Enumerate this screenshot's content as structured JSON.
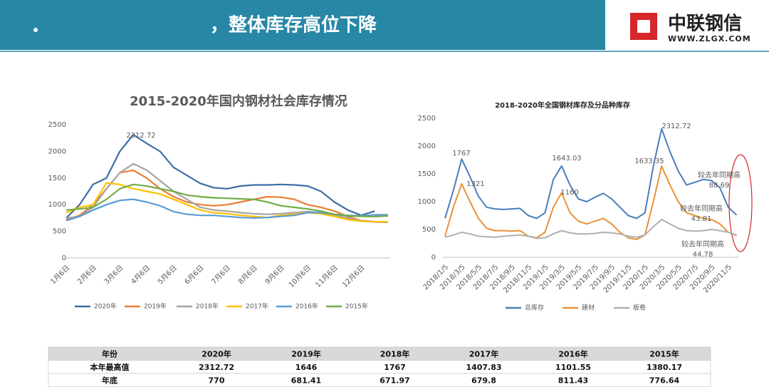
{
  "header": {
    "title": "，整体库存高位下降",
    "logo": "中联钢信",
    "url": "WWW.ZLGX.COM"
  },
  "chart_data": [
    {
      "type": "line",
      "title": "2015-2020年国内钢材社会库存情况",
      "categories": [
        "1月6日",
        null,
        "2月6日",
        null,
        "3月6日",
        null,
        "4月6日",
        null,
        "5月6日",
        null,
        "6月6日",
        null,
        "7月6日",
        null,
        "8月6日",
        null,
        "9月6日",
        null,
        "10月6日",
        null,
        "11月6日",
        null,
        "12月6日",
        null,
        null
      ],
      "series": [
        {
          "name": "2020年",
          "color": "#3e6ea6",
          "values": [
            750,
            1000,
            1380,
            1500,
            2000,
            2312.72,
            2150,
            2000,
            1700,
            1550,
            1400,
            1320,
            1300,
            1350,
            1370,
            1370,
            1380,
            1370,
            1350,
            1250,
            1050,
            900,
            800,
            880,
            null
          ]
        },
        {
          "name": "2019年",
          "color": "#ed7d31",
          "values": [
            720,
            800,
            1000,
            1300,
            1600,
            1646,
            1500,
            1300,
            1150,
            1050,
            1000,
            980,
            1000,
            1050,
            1100,
            1150,
            1140,
            1100,
            1000,
            950,
            880,
            780,
            700,
            681.41,
            680
          ]
        },
        {
          "name": "2018年",
          "color": "#a5a5a5",
          "values": [
            750,
            780,
            950,
            1300,
            1600,
            1767,
            1650,
            1450,
            1250,
            1100,
            950,
            900,
            880,
            850,
            830,
            820,
            830,
            850,
            870,
            850,
            800,
            750,
            700,
            671.97,
            670
          ]
        },
        {
          "name": "2017年",
          "color": "#ffc000",
          "values": [
            850,
            950,
            1000,
            1407.83,
            1380,
            1300,
            1250,
            1200,
            1100,
            1000,
            900,
            850,
            830,
            800,
            780,
            760,
            800,
            820,
            850,
            830,
            780,
            720,
            690,
            679.8,
            680
          ]
        },
        {
          "name": "2016年",
          "color": "#5b9bd5",
          "values": [
            700,
            780,
            900,
            1000,
            1080,
            1101.55,
            1050,
            980,
            870,
            820,
            800,
            800,
            780,
            760,
            750,
            760,
            780,
            800,
            850,
            850,
            820,
            800,
            790,
            811.43,
            810
          ]
        },
        {
          "name": "2015年",
          "color": "#70ad47",
          "values": [
            900,
            920,
            950,
            1100,
            1300,
            1380.17,
            1350,
            1300,
            1250,
            1180,
            1150,
            1130,
            1120,
            1110,
            1100,
            1050,
            980,
            950,
            920,
            880,
            820,
            790,
            780,
            776.64,
            790
          ]
        }
      ],
      "ylim": [
        0,
        2500
      ],
      "yticks": [
        0,
        500,
        1000,
        1500,
        2000,
        2500
      ],
      "grid": false,
      "legend": "bottom"
    },
    {
      "type": "line",
      "title": "2018-2020年全国钢材库存及分品种库存",
      "categories": [
        "2018/1/5",
        null,
        "2018/3/5",
        null,
        "2018/5/5",
        null,
        "2018/7/5",
        null,
        "2018/9/5",
        null,
        "2018/11/5",
        null,
        "2019/1/5",
        null,
        "2019/3/5",
        null,
        "2019/5/5",
        null,
        "2019/7/5",
        null,
        "2019/9/5",
        null,
        "2019/11/5",
        null,
        "2020/1/5",
        null,
        "2020/3/5",
        null,
        "2020/5/5",
        null,
        "2020/7/5",
        null,
        "2020/9/5",
        null,
        "2020/11/5",
        null
      ],
      "series": [
        {
          "name": "总库存",
          "color": "#4a7ebb",
          "values": [
            700,
            1200,
            1767,
            1450,
            1100,
            900,
            870,
            860,
            870,
            880,
            750,
            700,
            800,
            1400,
            1643.03,
            1300,
            1050,
            1000,
            1080,
            1150,
            1050,
            900,
            750,
            700,
            800,
            1633.35,
            2312.72,
            1900,
            1550,
            1300,
            1350,
            1400,
            1380,
            1250,
            900,
            760
          ]
        },
        {
          "name": "建材",
          "color": "#e8913a",
          "values": [
            380,
            900,
            1321,
            1000,
            700,
            520,
            480,
            480,
            470,
            480,
            380,
            350,
            450,
            900,
            1160,
            800,
            650,
            600,
            650,
            700,
            600,
            450,
            350,
            320,
            400,
            1000,
            1640,
            1300,
            1000,
            800,
            750,
            700,
            680,
            600,
            450,
            390
          ]
        },
        {
          "name": "板卷",
          "color": "#b0b0b0",
          "values": [
            360,
            400,
            450,
            420,
            380,
            370,
            360,
            380,
            390,
            400,
            380,
            340,
            350,
            420,
            480,
            440,
            420,
            420,
            430,
            450,
            440,
            420,
            380,
            360,
            400,
            550,
            680,
            600,
            520,
            480,
            470,
            480,
            500,
            480,
            450,
            400
          ]
        }
      ],
      "ylim": [
        0,
        2500
      ],
      "yticks": [
        0,
        500,
        1000,
        1500,
        2000,
        2500
      ],
      "grid": false,
      "legend": "bottom",
      "annotations": [
        {
          "label": "较去年同期高",
          "value": 88.69
        },
        {
          "label": "较去年同期高",
          "value": 43.81
        },
        {
          "label": "较去年同期高",
          "value": 44.78
        }
      ]
    }
  ],
  "table": {
    "header": [
      "年份",
      "2020年",
      "2019年",
      "2018年",
      "2017年",
      "2016年",
      "2015年"
    ],
    "rows": [
      [
        "本年最高值",
        "2312.72",
        "1646",
        "1767",
        "1407.83",
        "1101.55",
        "1380.17"
      ],
      [
        "年底",
        "770",
        "681.41",
        "671.97",
        "679.8",
        "811.43",
        "776.64"
      ]
    ]
  }
}
